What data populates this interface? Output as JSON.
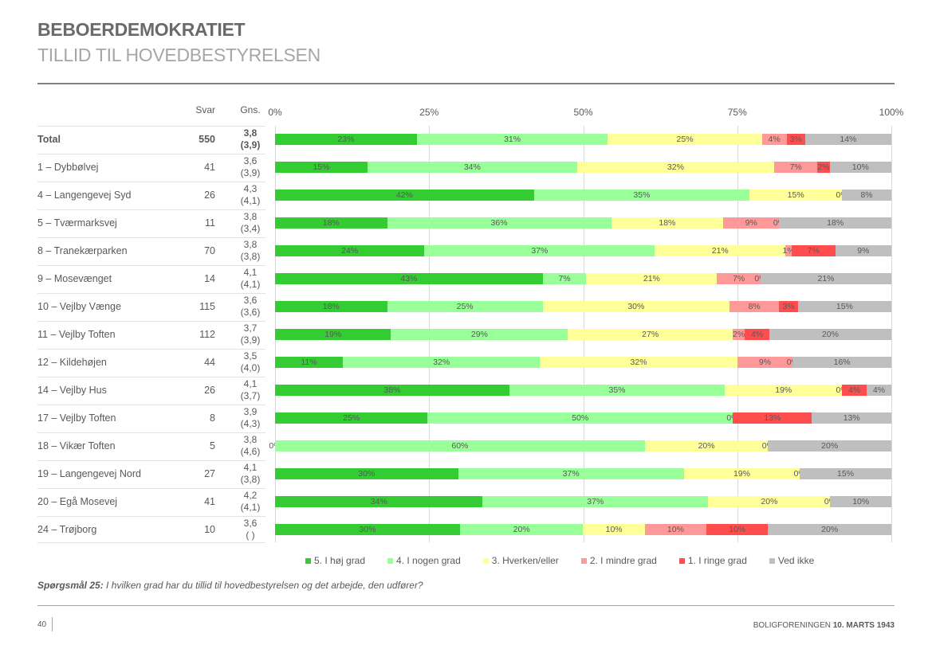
{
  "header": {
    "title": "BEBOERDEMOKRATIET",
    "subtitle": "TILLID TIL HOVEDBESTYRELSEN"
  },
  "table": {
    "col_svar": "Svar",
    "col_gns": "Gns."
  },
  "chart_data": {
    "type": "bar",
    "orientation": "horizontal",
    "stacked": true,
    "normalized": true,
    "xlim": [
      0,
      100
    ],
    "x_ticks": [
      "0%",
      "25%",
      "50%",
      "75%",
      "100%"
    ],
    "grid": true,
    "legend_position": "bottom",
    "series": [
      {
        "name": "5. I høj grad",
        "color": "#33cc33"
      },
      {
        "name": "4. I nogen grad",
        "color": "#99ff99"
      },
      {
        "name": "3. Hverken/eller",
        "color": "#ffff99"
      },
      {
        "name": "2. I mindre grad",
        "color": "#ff9999"
      },
      {
        "name": "1. I ringe grad",
        "color": "#ff4d4d"
      },
      {
        "name": "Ved ikke",
        "color": "#bfbfbf"
      }
    ],
    "rows": [
      {
        "name": "Total",
        "svar": "550",
        "gns": "3,8",
        "gns_prev": "(3,9)",
        "bold": true,
        "values": [
          23,
          31,
          25,
          4,
          3,
          14
        ]
      },
      {
        "name": "1 – Dybbølvej",
        "svar": "41",
        "gns": "3,6",
        "gns_prev": "(3,9)",
        "values": [
          15,
          34,
          32,
          7,
          2,
          10
        ]
      },
      {
        "name": "4 – Langengevej Syd",
        "svar": "26",
        "gns": "4,3",
        "gns_prev": "(4,1)",
        "values": [
          42,
          35,
          15,
          0,
          null,
          8
        ]
      },
      {
        "name": "5 – Tværmarksvej",
        "svar": "11",
        "gns": "3,8",
        "gns_prev": "(3,4)",
        "values": [
          18,
          36,
          18,
          9,
          0,
          18
        ]
      },
      {
        "name": "8 – Tranekærparken",
        "svar": "70",
        "gns": "3,8",
        "gns_prev": "(3,8)",
        "values": [
          24,
          37,
          21,
          1,
          7,
          9
        ]
      },
      {
        "name": "9 – Mosevænget",
        "svar": "14",
        "gns": "4,1",
        "gns_prev": "(4,1)",
        "values": [
          43,
          7,
          21,
          7,
          0,
          21
        ]
      },
      {
        "name": "10 – Vejlby Vænge",
        "svar": "115",
        "gns": "3,6",
        "gns_prev": "(3,6)",
        "values": [
          18,
          25,
          30,
          8,
          3,
          15
        ]
      },
      {
        "name": "11 – Vejlby Toften",
        "svar": "112",
        "gns": "3,7",
        "gns_prev": "(3,9)",
        "values": [
          19,
          29,
          27,
          2,
          4,
          20
        ]
      },
      {
        "name": "12 – Kildehøjen",
        "svar": "44",
        "gns": "3,5",
        "gns_prev": "(4,0)",
        "values": [
          11,
          32,
          32,
          9,
          0,
          16
        ]
      },
      {
        "name": "14 – Vejlby Hus",
        "svar": "26",
        "gns": "4,1",
        "gns_prev": "(3,7)",
        "values": [
          38,
          35,
          19,
          0,
          4,
          4
        ]
      },
      {
        "name": "17 – Vejlby Toften",
        "svar": "8",
        "gns": "3,9",
        "gns_prev": "(4,3)",
        "values": [
          25,
          50,
          null,
          0,
          13,
          13
        ]
      },
      {
        "name": "18 – Vikær Toften",
        "svar": "5",
        "gns": "3,8",
        "gns_prev": "(4,6)",
        "values": [
          0,
          60,
          20,
          0,
          null,
          20
        ]
      },
      {
        "name": "19 – Langengevej Nord",
        "svar": "27",
        "gns": "4,1",
        "gns_prev": "(3,8)",
        "values": [
          30,
          37,
          19,
          0,
          null,
          15
        ]
      },
      {
        "name": "20 – Egå Mosevej",
        "svar": "41",
        "gns": "4,2",
        "gns_prev": "(4,1)",
        "values": [
          34,
          37,
          20,
          0,
          null,
          10
        ]
      },
      {
        "name": "24 – Trøjborg",
        "svar": "10",
        "gns": "3,6",
        "gns_prev": "(  )",
        "values": [
          30,
          20,
          10,
          10,
          10,
          20
        ]
      }
    ]
  },
  "question": {
    "label": "Spørgsmål 25:",
    "text": " I hvilken grad har du tillid til hovedbestyrelsen og det arbejde, den udfører?"
  },
  "footer": {
    "page_number": "40",
    "org": "BOLIGFORENINGEN ",
    "date": "10. MARTS 1943"
  }
}
